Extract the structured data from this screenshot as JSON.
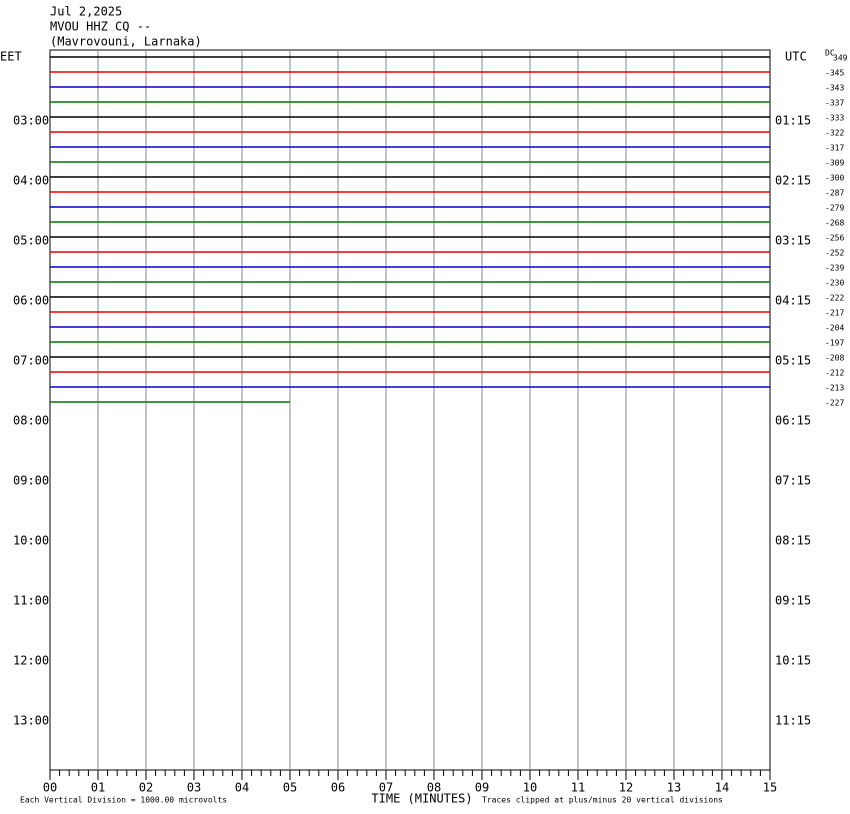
{
  "header": {
    "date": "Jul 2,2025",
    "station": "MVOU HHZ CQ --",
    "location": "(Mavrovouni, Larnaka)"
  },
  "left_zone": "EET",
  "right_zone": "UTC",
  "dc_label": "DC",
  "left_times": [
    "03:00",
    "04:00",
    "05:00",
    "06:00",
    "07:00",
    "08:00",
    "09:00",
    "10:00",
    "11:00",
    "12:00",
    "13:00"
  ],
  "right_times": [
    "01:15",
    "02:15",
    "03:15",
    "04:15",
    "05:15",
    "06:15",
    "07:15",
    "08:15",
    "09:15",
    "10:15",
    "11:15"
  ],
  "offsets": [
    "349",
    "-345",
    "-343",
    "-337",
    "-333",
    "-322",
    "-317",
    "-309",
    "-300",
    "-287",
    "-279",
    "-268",
    "-256",
    "-252",
    "-239",
    "-230",
    "-222",
    "-217",
    "-204",
    "-197",
    "-208",
    "-212",
    "-213",
    "-227"
  ],
  "x_ticks": [
    "00",
    "01",
    "02",
    "03",
    "04",
    "05",
    "06",
    "07",
    "08",
    "09",
    "10",
    "11",
    "12",
    "13",
    "14",
    "15"
  ],
  "x_title": "TIME (MINUTES)",
  "footer_left": "Each Vertical Division = 1000.00 microvolts",
  "footer_right": "Traces clipped at plus/minus 20 vertical divisions"
}
